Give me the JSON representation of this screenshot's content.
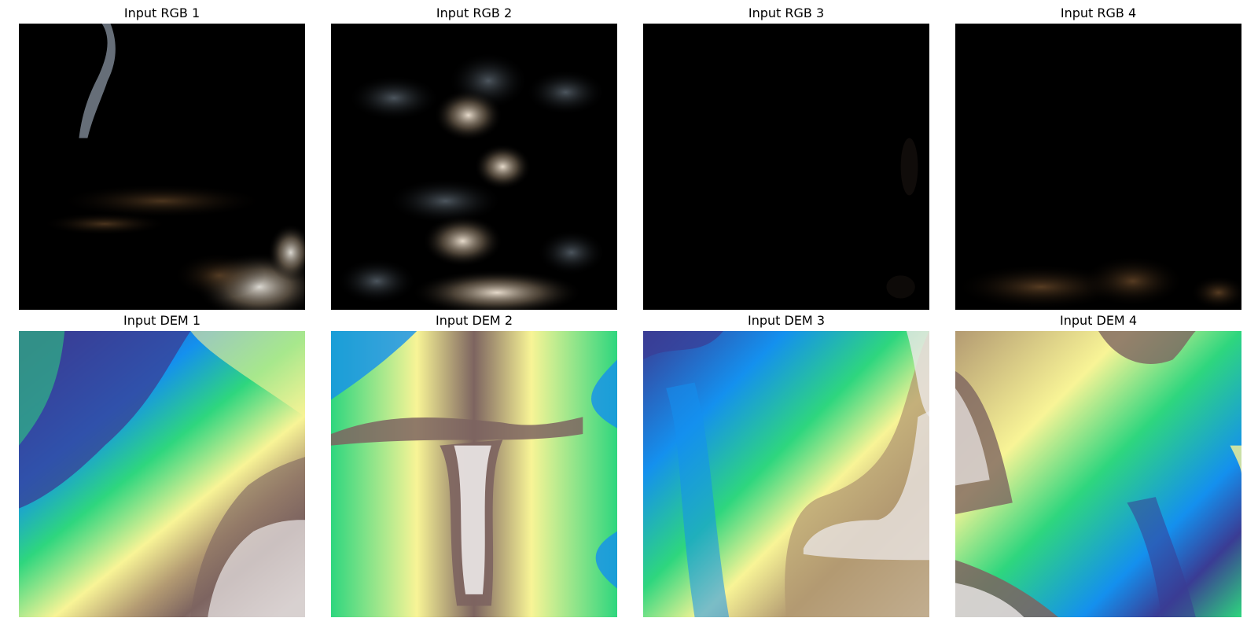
{
  "panels": [
    {
      "title": "Input RGB 1",
      "kind": "rgb"
    },
    {
      "title": "Input RGB 2",
      "kind": "rgb"
    },
    {
      "title": "Input RGB 3",
      "kind": "rgb"
    },
    {
      "title": "Input RGB 4",
      "kind": "rgb"
    },
    {
      "title": "Input DEM 1",
      "kind": "dem"
    },
    {
      "title": "Input DEM 2",
      "kind": "dem"
    },
    {
      "title": "Input DEM 3",
      "kind": "dem"
    },
    {
      "title": "Input DEM 4",
      "kind": "dem"
    }
  ],
  "colors": {
    "rgb_background": "#000000",
    "rgb_highlight": "#d9d4cc",
    "rgb_brown": "#5a3a1e",
    "dem_low": "#3a3c94",
    "dem_blue": "#1490ee",
    "dem_green": "#2ed67e",
    "dem_yellow": "#f8f496",
    "dem_tan": "#b39a72",
    "dem_brown": "#7d6460",
    "dem_white": "#ece8e8"
  }
}
